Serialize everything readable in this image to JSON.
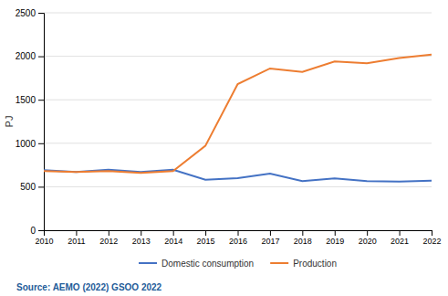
{
  "chart_data": {
    "type": "line",
    "x": [
      2010,
      2011,
      2012,
      2013,
      2014,
      2015,
      2016,
      2017,
      2018,
      2019,
      2020,
      2021,
      2022
    ],
    "xlim": [
      2010,
      2022
    ],
    "xticks": [
      2010,
      2011,
      2012,
      2013,
      2014,
      2015,
      2016,
      2017,
      2018,
      2019,
      2020,
      2021,
      2022
    ],
    "series": [
      {
        "name": "Domestic consumption",
        "color": "#4472C4",
        "values": [
          690,
          670,
          695,
          670,
          695,
          580,
          600,
          650,
          565,
          595,
          565,
          560,
          570
        ]
      },
      {
        "name": "Production",
        "color": "#ED7D31",
        "values": [
          680,
          670,
          680,
          660,
          680,
          970,
          1680,
          1860,
          1820,
          1940,
          1920,
          1980,
          2020
        ]
      }
    ],
    "ylabel": "PJ",
    "ylim": [
      0,
      2500
    ],
    "yticks": [
      0,
      500,
      1000,
      1500,
      2000,
      2500
    ],
    "grid": true,
    "legend": "bottom",
    "annotations": [
      {
        "text": "Source: AEMO (2022) GSOO 2022",
        "color": "#1F5C99"
      }
    ]
  }
}
